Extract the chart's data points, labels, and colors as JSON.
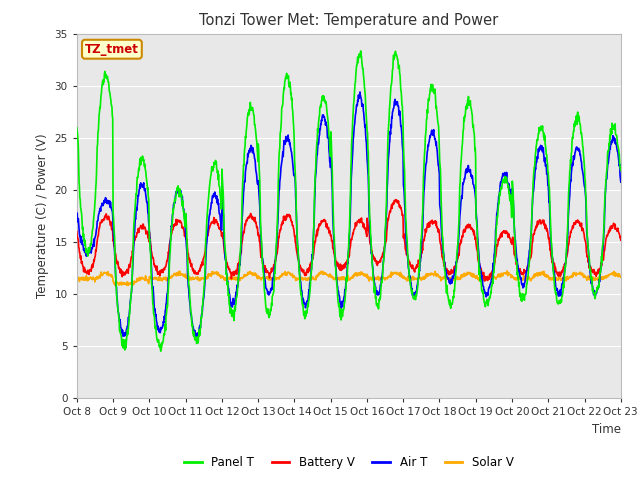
{
  "title": "Tonzi Tower Met: Temperature and Power",
  "xlabel": "Time",
  "ylabel": "Temperature (C) / Power (V)",
  "annotation_text": "TZ_tmet",
  "annotation_bg": "#ffffcc",
  "annotation_border": "#cc8800",
  "annotation_text_color": "#cc0000",
  "ylim": [
    0,
    35
  ],
  "yticks": [
    0,
    5,
    10,
    15,
    20,
    25,
    30,
    35
  ],
  "x_labels": [
    "Oct 8",
    "Oct 9",
    "Oct 10",
    "Oct 11",
    "Oct 12",
    "Oct 13",
    "Oct 14",
    "Oct 15",
    "Oct 16",
    "Oct 17",
    "Oct 18",
    "Oct 19",
    "Oct 20",
    "Oct 21",
    "Oct 22",
    "Oct 23"
  ],
  "x_positions": [
    0,
    1,
    2,
    3,
    4,
    5,
    6,
    7,
    8,
    9,
    10,
    11,
    12,
    13,
    14,
    15
  ],
  "fig_bg": "#ffffff",
  "plot_bg": "#e8e8e8",
  "grid_color": "#ffffff",
  "panel_T_color": "#00ee00",
  "battery_V_color": "#ff0000",
  "air_T_color": "#0000ff",
  "solar_V_color": "#ffaa00",
  "line_width": 1.2,
  "legend_labels": [
    "Panel T",
    "Battery V",
    "Air T",
    "Solar V"
  ],
  "legend_colors": [
    "#00ee00",
    "#ff0000",
    "#0000ff",
    "#ffaa00"
  ]
}
